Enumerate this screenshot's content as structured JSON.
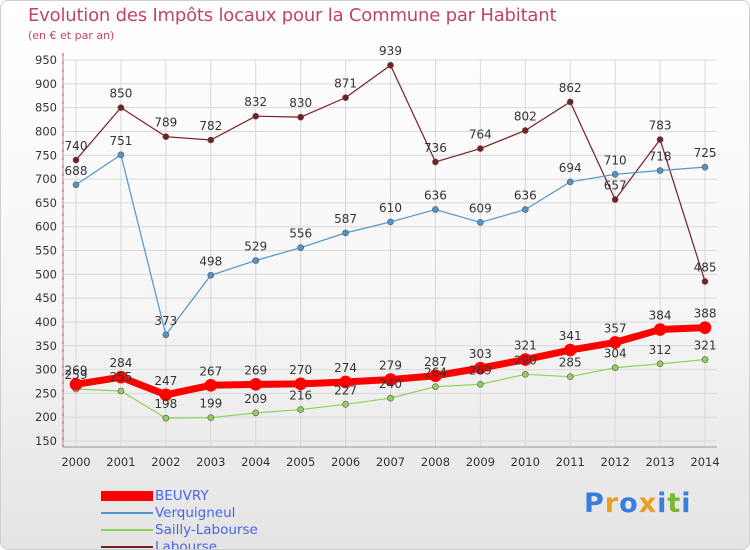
{
  "header": {
    "title": "Evolution des Impôts locaux pour la Commune par Habitant",
    "subtitle": "(en € et par an)"
  },
  "brand": {
    "text": "Proxiti",
    "letter_colors": [
      "#3a7de0",
      "#e8a020",
      "#3a7de0",
      "#e8a020",
      "#3a7de0",
      "#7ab830",
      "#3a7de0"
    ]
  },
  "chart_data": {
    "type": "line",
    "x": [
      2000,
      2001,
      2002,
      2003,
      2004,
      2005,
      2006,
      2007,
      2008,
      2009,
      2010,
      2011,
      2012,
      2013,
      2014
    ],
    "ylim": [
      150,
      950
    ],
    "yticks": [
      150,
      200,
      250,
      300,
      350,
      400,
      450,
      500,
      550,
      600,
      650,
      700,
      750,
      800,
      850,
      900,
      950
    ],
    "grid": true,
    "legend_position": "bottom",
    "series": [
      {
        "name": "Labourse",
        "color": "#7a1e22",
        "line_width": 1.2,
        "values": [
          740,
          850,
          789,
          782,
          832,
          830,
          871,
          939,
          736,
          764,
          802,
          862,
          657,
          783,
          485
        ]
      },
      {
        "name": "Verquigneul",
        "color": "#4f95cf",
        "line_width": 1.2,
        "values": [
          688,
          751,
          373,
          498,
          529,
          556,
          587,
          610,
          636,
          609,
          636,
          694,
          710,
          718,
          725
        ]
      },
      {
        "name": "Sailly-Labourse",
        "color": "#8fd05a",
        "line_width": 1.2,
        "values": [
          259,
          255,
          198,
          199,
          209,
          216,
          227,
          240,
          264,
          269,
          290,
          285,
          304,
          312,
          321
        ]
      },
      {
        "name": "BEUVRY",
        "color": "#ff0000",
        "line_width": 7,
        "values": [
          269,
          284,
          247,
          267,
          269,
          270,
          274,
          279,
          287,
          303,
          321,
          341,
          357,
          384,
          388
        ]
      }
    ],
    "data_labels": {
      "Labourse": [
        "740",
        "850",
        "789",
        "782",
        "832",
        "830",
        "871",
        "939",
        "736",
        "764",
        "802",
        "862",
        "657",
        "783",
        "485"
      ],
      "Verquigneul": [
        "688",
        "751",
        "373",
        "498",
        "529",
        "556",
        "587",
        "610",
        "636",
        "609",
        "636",
        "694",
        "710",
        "718",
        "725"
      ],
      "Sailly-Labourse": [
        "259",
        "255",
        "198",
        "199",
        "209",
        "216",
        "227",
        "240",
        "264",
        "269",
        "290",
        "285",
        "304",
        "312",
        "321"
      ],
      "BEUVRY": [
        "269",
        "284",
        "247",
        "267",
        "269",
        "270",
        "274",
        "279",
        "287",
        "303",
        "321",
        "341",
        "357",
        "384",
        "388"
      ]
    },
    "legend_order": [
      "BEUVRY",
      "Verquigneul",
      "Sailly-Labourse",
      "Labourse"
    ]
  }
}
